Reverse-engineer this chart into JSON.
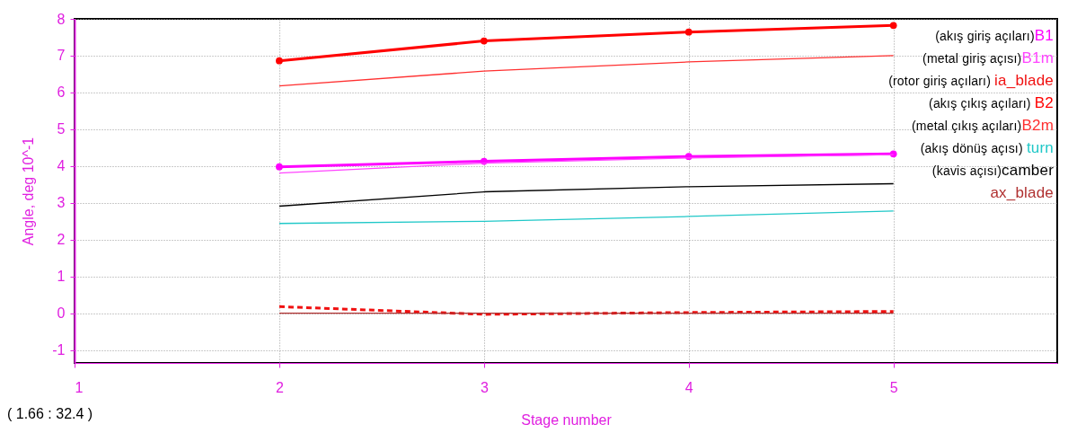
{
  "chart_data": {
    "type": "line",
    "xlabel": "Stage number",
    "ylabel": "Angle, deg 10^-1",
    "x": [
      2,
      3,
      4,
      5
    ],
    "xlim": [
      1,
      5.8
    ],
    "xticks": [
      1,
      2,
      3,
      4,
      5
    ],
    "ylim": [
      -1.35,
      8
    ],
    "yticks": [
      -1,
      0,
      1,
      2,
      3,
      4,
      5,
      6,
      7,
      8
    ],
    "grid": true,
    "legend": "right",
    "annotations": [
      "( 1.66  :   32.4 )",
      "(akış giriş açıları)",
      "(metal giriş açısı)",
      "(rotor giriş açıları) ",
      "(akış çıkış açıları) ",
      "(metal çıkış açıları)",
      "(akış dönüş açısı) ",
      "(kavis açısı)"
    ],
    "series": [
      {
        "name": "B1",
        "color": "#ff00ff",
        "marker": "circle",
        "values": [
          3.98,
          4.13,
          4.26,
          4.33
        ]
      },
      {
        "name": "B1m",
        "color": "#ff44ff",
        "values": [
          3.81,
          4.08,
          4.22,
          4.31
        ]
      },
      {
        "name": "ia_blade",
        "color": "#f01010",
        "line_style": "dashed",
        "values": [
          0.18,
          -0.03,
          0.02,
          0.05
        ]
      },
      {
        "name": "B2",
        "color": "#ff0000",
        "marker": "circle",
        "values": [
          6.86,
          7.4,
          7.64,
          7.82
        ]
      },
      {
        "name": "B2m",
        "color": "#ff3030",
        "values": [
          6.18,
          6.58,
          6.83,
          7.0
        ]
      },
      {
        "name": "turn",
        "color": "#20c8c8",
        "values": [
          2.44,
          2.5,
          2.63,
          2.78
        ]
      },
      {
        "name": "camber",
        "color": "#000000",
        "values": [
          2.91,
          3.3,
          3.44,
          3.52
        ]
      },
      {
        "name": "ax_blade",
        "color": "#b03030",
        "values": [
          0,
          0,
          0,
          0
        ]
      }
    ]
  }
}
